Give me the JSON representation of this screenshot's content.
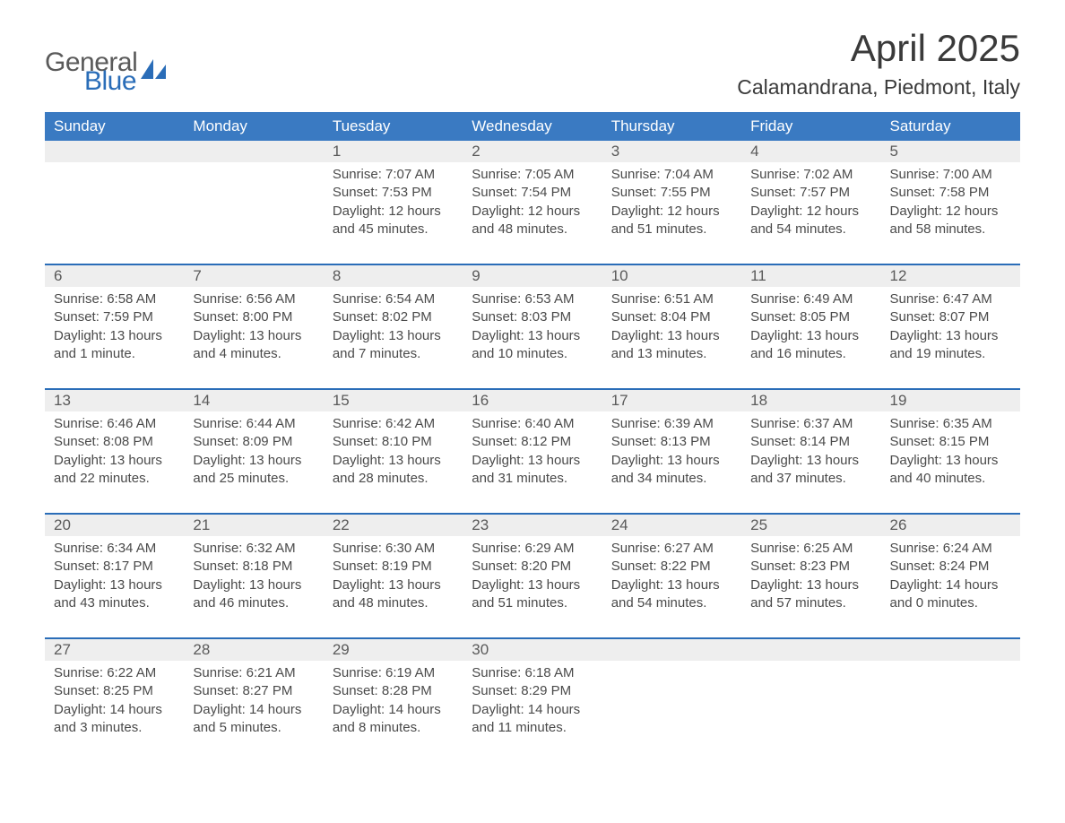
{
  "logo": {
    "text1": "General",
    "text2": "Blue",
    "icon_color": "#2a6db8"
  },
  "title": "April 2025",
  "location": "Calamandrana, Piedmont, Italy",
  "header_bg": "#3a7ac2",
  "header_fg": "#ffffff",
  "daynum_bg": "#eeeeee",
  "sep_color": "#2a6db8",
  "text_color": "#4a4a4a",
  "font_family": "Segoe UI, Arial, sans-serif",
  "day_headers": [
    "Sunday",
    "Monday",
    "Tuesday",
    "Wednesday",
    "Thursday",
    "Friday",
    "Saturday"
  ],
  "weeks": [
    [
      null,
      null,
      {
        "n": "1",
        "r": "7:07 AM",
        "s": "7:53 PM",
        "d": "12 hours and 45 minutes."
      },
      {
        "n": "2",
        "r": "7:05 AM",
        "s": "7:54 PM",
        "d": "12 hours and 48 minutes."
      },
      {
        "n": "3",
        "r": "7:04 AM",
        "s": "7:55 PM",
        "d": "12 hours and 51 minutes."
      },
      {
        "n": "4",
        "r": "7:02 AM",
        "s": "7:57 PM",
        "d": "12 hours and 54 minutes."
      },
      {
        "n": "5",
        "r": "7:00 AM",
        "s": "7:58 PM",
        "d": "12 hours and 58 minutes."
      }
    ],
    [
      {
        "n": "6",
        "r": "6:58 AM",
        "s": "7:59 PM",
        "d": "13 hours and 1 minute."
      },
      {
        "n": "7",
        "r": "6:56 AM",
        "s": "8:00 PM",
        "d": "13 hours and 4 minutes."
      },
      {
        "n": "8",
        "r": "6:54 AM",
        "s": "8:02 PM",
        "d": "13 hours and 7 minutes."
      },
      {
        "n": "9",
        "r": "6:53 AM",
        "s": "8:03 PM",
        "d": "13 hours and 10 minutes."
      },
      {
        "n": "10",
        "r": "6:51 AM",
        "s": "8:04 PM",
        "d": "13 hours and 13 minutes."
      },
      {
        "n": "11",
        "r": "6:49 AM",
        "s": "8:05 PM",
        "d": "13 hours and 16 minutes."
      },
      {
        "n": "12",
        "r": "6:47 AM",
        "s": "8:07 PM",
        "d": "13 hours and 19 minutes."
      }
    ],
    [
      {
        "n": "13",
        "r": "6:46 AM",
        "s": "8:08 PM",
        "d": "13 hours and 22 minutes."
      },
      {
        "n": "14",
        "r": "6:44 AM",
        "s": "8:09 PM",
        "d": "13 hours and 25 minutes."
      },
      {
        "n": "15",
        "r": "6:42 AM",
        "s": "8:10 PM",
        "d": "13 hours and 28 minutes."
      },
      {
        "n": "16",
        "r": "6:40 AM",
        "s": "8:12 PM",
        "d": "13 hours and 31 minutes."
      },
      {
        "n": "17",
        "r": "6:39 AM",
        "s": "8:13 PM",
        "d": "13 hours and 34 minutes."
      },
      {
        "n": "18",
        "r": "6:37 AM",
        "s": "8:14 PM",
        "d": "13 hours and 37 minutes."
      },
      {
        "n": "19",
        "r": "6:35 AM",
        "s": "8:15 PM",
        "d": "13 hours and 40 minutes."
      }
    ],
    [
      {
        "n": "20",
        "r": "6:34 AM",
        "s": "8:17 PM",
        "d": "13 hours and 43 minutes."
      },
      {
        "n": "21",
        "r": "6:32 AM",
        "s": "8:18 PM",
        "d": "13 hours and 46 minutes."
      },
      {
        "n": "22",
        "r": "6:30 AM",
        "s": "8:19 PM",
        "d": "13 hours and 48 minutes."
      },
      {
        "n": "23",
        "r": "6:29 AM",
        "s": "8:20 PM",
        "d": "13 hours and 51 minutes."
      },
      {
        "n": "24",
        "r": "6:27 AM",
        "s": "8:22 PM",
        "d": "13 hours and 54 minutes."
      },
      {
        "n": "25",
        "r": "6:25 AM",
        "s": "8:23 PM",
        "d": "13 hours and 57 minutes."
      },
      {
        "n": "26",
        "r": "6:24 AM",
        "s": "8:24 PM",
        "d": "14 hours and 0 minutes."
      }
    ],
    [
      {
        "n": "27",
        "r": "6:22 AM",
        "s": "8:25 PM",
        "d": "14 hours and 3 minutes."
      },
      {
        "n": "28",
        "r": "6:21 AM",
        "s": "8:27 PM",
        "d": "14 hours and 5 minutes."
      },
      {
        "n": "29",
        "r": "6:19 AM",
        "s": "8:28 PM",
        "d": "14 hours and 8 minutes."
      },
      {
        "n": "30",
        "r": "6:18 AM",
        "s": "8:29 PM",
        "d": "14 hours and 11 minutes."
      },
      null,
      null,
      null
    ]
  ],
  "labels": {
    "sunrise": "Sunrise: ",
    "sunset": "Sunset: ",
    "daylight": "Daylight: "
  }
}
